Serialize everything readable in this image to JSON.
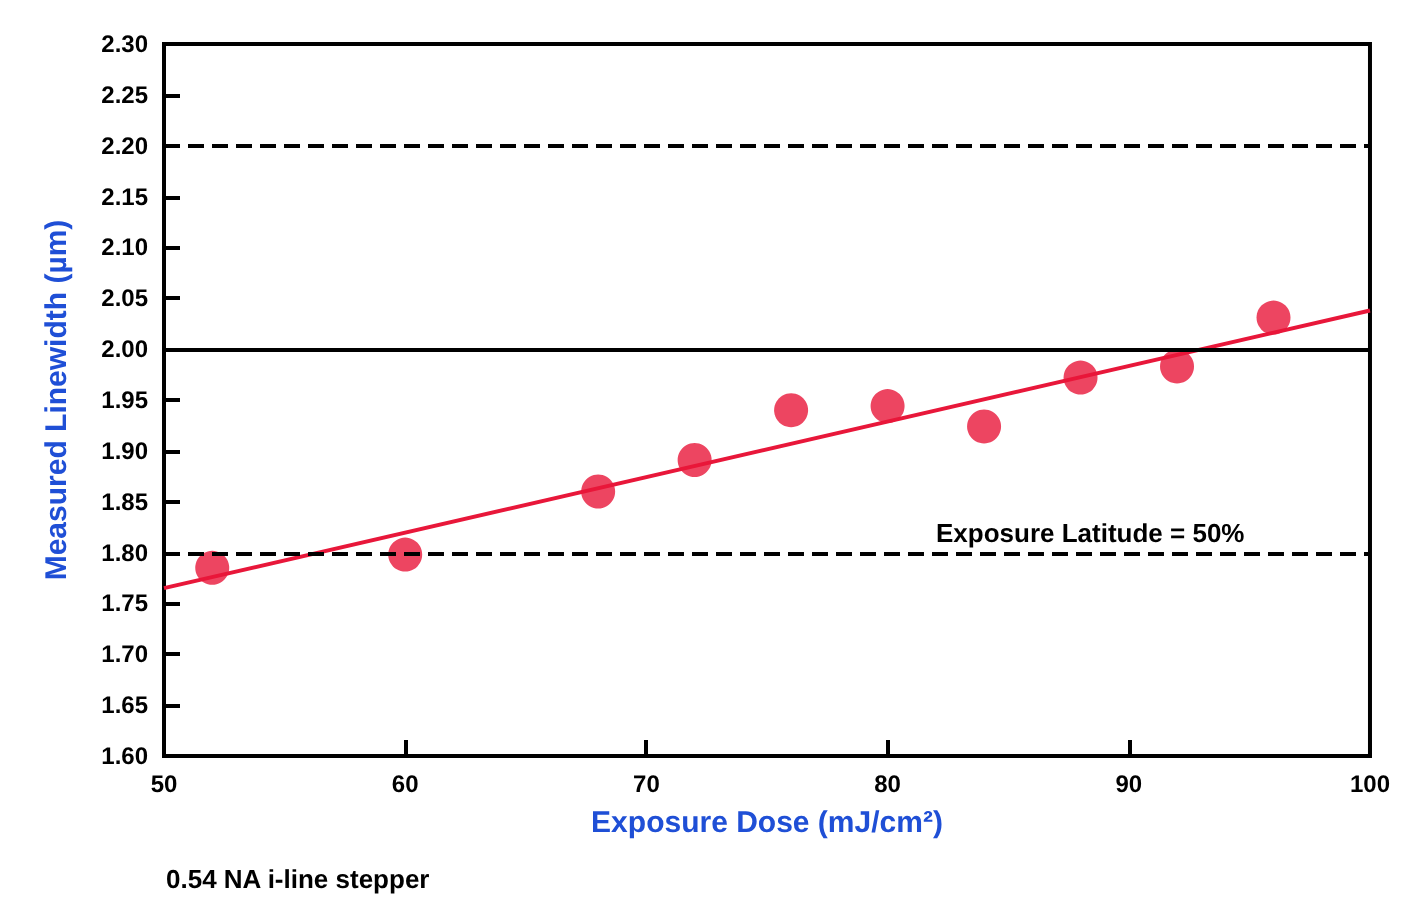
{
  "chart_data": {
    "type": "scatter",
    "xlabel": "Exposure Dose (mJ/cm²)",
    "ylabel": "Measured Linewidth (µm)",
    "x": [
      52,
      60,
      68,
      72,
      76,
      80,
      84,
      88,
      92,
      96
    ],
    "series": [
      {
        "color": "#e8173a",
        "marker": "circle",
        "values": [
          1.785,
          1.798,
          1.86,
          1.891,
          1.94,
          1.944,
          1.924,
          1.972,
          1.983,
          2.031
        ]
      },
      {
        "type": "line",
        "color": "#e8173a",
        "x": [
          50,
          100
        ],
        "values": [
          1.765,
          2.038
        ]
      }
    ],
    "xlim": [
      50,
      100
    ],
    "xticks": [
      50,
      60,
      70,
      80,
      90,
      100
    ],
    "ylim": [
      1.6,
      2.3
    ],
    "yticks": [
      {
        "value": 1.6,
        "label": "1.60"
      },
      {
        "value": 1.65,
        "label": "1.65"
      },
      {
        "value": 1.7,
        "label": "1.70"
      },
      {
        "value": 1.75,
        "label": "1.75"
      },
      {
        "value": 1.8,
        "label": "1.80"
      },
      {
        "value": 1.85,
        "label": "1.85"
      },
      {
        "value": 1.9,
        "label": "1.90"
      },
      {
        "value": 1.95,
        "label": "1.95"
      },
      {
        "value": 2.0,
        "label": "2.00"
      },
      {
        "value": 2.05,
        "label": "2.05"
      },
      {
        "value": 2.1,
        "label": "2.10"
      },
      {
        "value": 2.15,
        "label": "2.15"
      },
      {
        "value": 2.2,
        "label": "2.20"
      },
      {
        "value": 2.25,
        "label": "2.25"
      },
      {
        "value": 2.3,
        "label": "2.30"
      }
    ],
    "ref_lines": [
      {
        "axis": "y",
        "value": 2.2,
        "line_style": "dashed",
        "color": "#000000"
      },
      {
        "axis": "y",
        "value": 2.0,
        "line_style": "solid",
        "color": "#000000"
      },
      {
        "axis": "y",
        "value": 1.8,
        "line_style": "dashed",
        "color": "#000000"
      }
    ],
    "annotations": [
      "Exposure Latitude = 50%",
      "0.54 NA i-line stepper"
    ],
    "grid": false
  }
}
